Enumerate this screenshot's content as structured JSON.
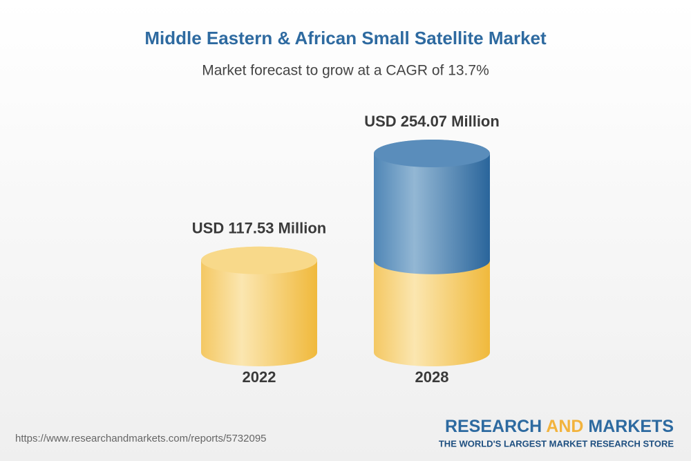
{
  "chart_data": {
    "type": "bar",
    "title": "Middle Eastern & African Small Satellite Market",
    "subtitle": "Market forecast to grow at a CAGR of 13.7%",
    "categories": [
      "2022",
      "2028"
    ],
    "values": [
      117.53,
      254.07
    ],
    "value_labels": [
      "USD 117.53 Million",
      "USD 254.07 Million"
    ],
    "colors": [
      "#f2bf4a",
      "#2d6aa0"
    ]
  },
  "footer": {
    "url": "https://www.researchandmarkets.com/reports/5732095",
    "brand": [
      "RESEARCH",
      "AND",
      "MARKETS"
    ],
    "tagline": "THE WORLD'S LARGEST MARKET RESEARCH STORE"
  }
}
